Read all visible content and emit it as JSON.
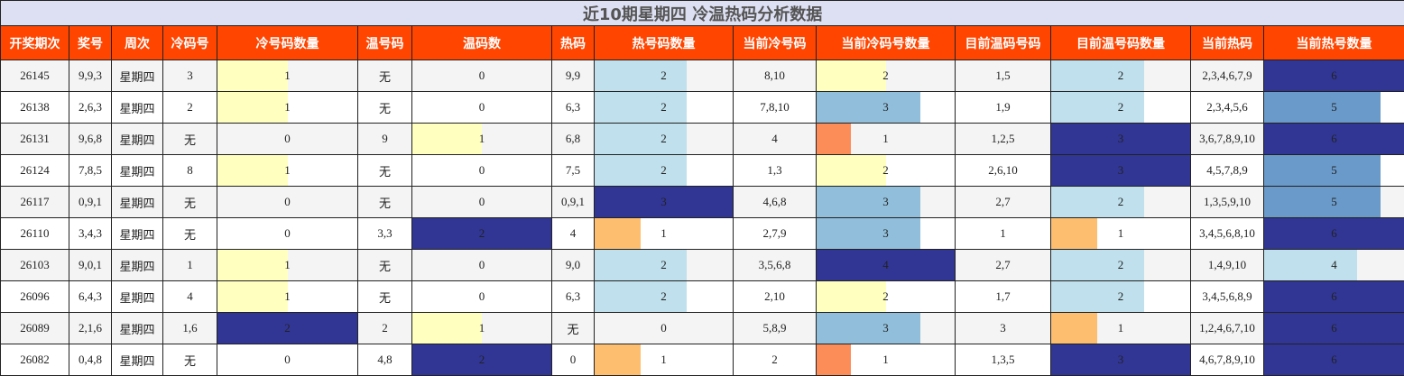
{
  "table": {
    "title": "近10期星期四 冷温热码分析数据",
    "headers": [
      "开奖期次",
      "奖号",
      "周次",
      "冷码号",
      "冷号码数量",
      "温号码",
      "温码数",
      "热码",
      "热号码数量",
      "当前冷号码",
      "当前冷码号数量",
      "目前温码号码",
      "目前温号码数量",
      "当前热码",
      "当前热号数量"
    ],
    "rows": [
      [
        "26145",
        "9,9,3",
        "星期四",
        "3",
        1,
        "无",
        0,
        "9,9",
        2,
        "8,10",
        2,
        "1,5",
        2,
        "2,3,4,6,7,9",
        6
      ],
      [
        "26138",
        "2,6,3",
        "星期四",
        "2",
        1,
        "无",
        0,
        "6,3",
        2,
        "7,8,10",
        3,
        "1,9",
        2,
        "2,3,4,5,6",
        5
      ],
      [
        "26131",
        "9,6,8",
        "星期四",
        "无",
        0,
        "9",
        1,
        "6,8",
        2,
        "4",
        1,
        "1,2,5",
        3,
        "3,6,7,8,9,10",
        6
      ],
      [
        "26124",
        "7,8,5",
        "星期四",
        "8",
        1,
        "无",
        0,
        "7,5",
        2,
        "1,3",
        2,
        "2,6,10",
        3,
        "4,5,7,8,9",
        5
      ],
      [
        "26117",
        "0,9,1",
        "星期四",
        "无",
        0,
        "无",
        0,
        "0,9,1",
        3,
        "4,6,8",
        3,
        "2,7",
        2,
        "1,3,5,9,10",
        5
      ],
      [
        "26110",
        "3,4,3",
        "星期四",
        "无",
        0,
        "3,3",
        2,
        "4",
        1,
        "2,7,9",
        3,
        "1",
        1,
        "3,4,5,6,8,10",
        6
      ],
      [
        "26103",
        "9,0,1",
        "星期四",
        "1",
        1,
        "无",
        0,
        "9,0",
        2,
        "3,5,6,8",
        4,
        "2,7",
        2,
        "1,4,9,10",
        4
      ],
      [
        "26096",
        "6,4,3",
        "星期四",
        "4",
        1,
        "无",
        0,
        "6,3",
        2,
        "2,10",
        2,
        "1,7",
        2,
        "3,4,5,6,8,9",
        6
      ],
      [
        "26089",
        "2,1,6",
        "星期四",
        "1,6",
        2,
        "2",
        1,
        "无",
        0,
        "5,8,9",
        3,
        "3",
        1,
        "1,2,4,6,7,10",
        6
      ],
      [
        "26082",
        "0,4,8",
        "星期四",
        "无",
        0,
        "4,8",
        2,
        "0",
        1,
        "2",
        1,
        "1,3,5",
        3,
        "4,6,7,8,9,10",
        6
      ]
    ]
  }
}
